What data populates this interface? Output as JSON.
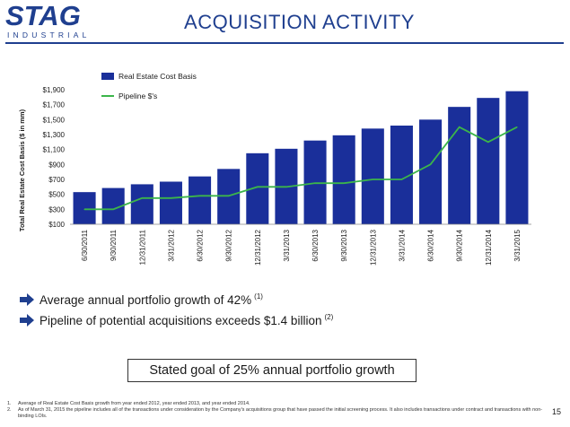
{
  "header": {
    "logo_main": "STAG",
    "logo_sub": "INDUSTRIAL",
    "title": "ACQUISITION ACTIVITY"
  },
  "colors": {
    "brand": "#1f3f8f",
    "bar": "#1a2f9a",
    "line": "#3cb54a",
    "arrow": "#1f3f8f"
  },
  "chart_data": {
    "type": "bar",
    "title": "",
    "xlabel": "",
    "ylabel": "Total Real Estate Cost Basis ($ in mm)",
    "ylim": [
      100,
      1900
    ],
    "yticks": [
      "$100",
      "$300",
      "$500",
      "$700",
      "$900",
      "$1,100",
      "$1,300",
      "$1,500",
      "$1,700",
      "$1,900"
    ],
    "grid": false,
    "legend_position": "top-left",
    "categories": [
      "6/30/2011",
      "9/30/2011",
      "12/31/2011",
      "3/31/2012",
      "6/30/2012",
      "9/30/2012",
      "12/31/2012",
      "3/31/2013",
      "6/30/2013",
      "9/30/2013",
      "12/31/2013",
      "3/31/2014",
      "6/30/2014",
      "9/30/2014",
      "12/31/2014",
      "3/31/2015"
    ],
    "series": [
      {
        "name": "Real Estate Cost Basis",
        "type": "bar",
        "values": [
          530,
          585,
          635,
          670,
          740,
          840,
          1050,
          1110,
          1220,
          1290,
          1380,
          1420,
          1500,
          1670,
          1790,
          1880
        ]
      },
      {
        "name": "Pipeline $'s",
        "type": "line",
        "values": [
          300,
          300,
          450,
          450,
          480,
          480,
          600,
          600,
          650,
          650,
          700,
          700,
          900,
          1400,
          1200,
          1400
        ]
      }
    ]
  },
  "bullets": [
    {
      "text": "Average annual portfolio growth of 42%",
      "note": "(1)"
    },
    {
      "text": "Pipeline of potential acquisitions exceeds $1.4 billion",
      "note": "(2)"
    }
  ],
  "goal_text": "Stated goal of 25% annual portfolio growth",
  "footnotes": [
    {
      "num": "1.",
      "text": "Average of Real Estate Cost Basis growth from year ended 2012, year ended 2013, and year ended 2014."
    },
    {
      "num": "2.",
      "text": "As of March 31, 2015 the pipeline includes all of the transactions under consideration by the Company's acquisitions group that have passed the initial screening process. It also includes transactions under contract and transactions with non-binding LOIs."
    }
  ],
  "page_number": "15"
}
